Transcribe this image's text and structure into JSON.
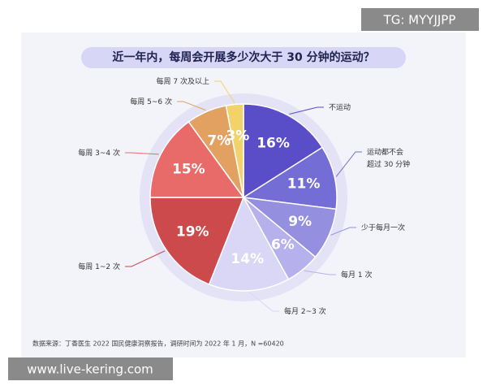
{
  "chart_data": {
    "type": "pie",
    "title": "近一年内，每周会开展多少次大于 30 分钟的运动？",
    "categories": [
      "不运动",
      "运动都不会\n超过 30 分钟",
      "少于每月一次",
      "每月 1 次",
      "每月 2~3 次",
      "每周 1~2 次",
      "每周 3~4 次",
      "每周 5~6 次",
      "每周 7 次及以上"
    ],
    "values": [
      16,
      11,
      9,
      6,
      14,
      19,
      15,
      7,
      3
    ],
    "value_labels": [
      "16%",
      "11%",
      "9%",
      "6%",
      "14%",
      "19%",
      "15%",
      "7%",
      "3%"
    ],
    "colors": [
      "#5a4ec8",
      "#746dd6",
      "#958fe0",
      "#b6b1ec",
      "#d9d7f5",
      "#cc4a4b",
      "#e86a69",
      "#e2a161",
      "#f2d36b"
    ],
    "source": "数据来源：丁香医生 2022 国民健康洞察报告，调研时间为 2022 年 1 月，N =60420"
  },
  "watermarks": [
    "TG: MYYJJPP",
    "www.live-kering.com"
  ]
}
